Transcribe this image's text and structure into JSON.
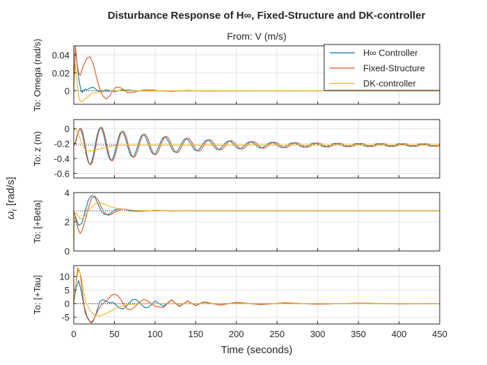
{
  "figure": {
    "title": "Disturbance Response of H∞, Fixed-Structure and DK-controller",
    "input_label": "From: V (m/s)",
    "xlabel": "Time (seconds)",
    "ylabel": "ω",
    "ylabel_sub": "r",
    "ylabel_unit": " [rad/s]",
    "legend": {
      "placement": "top-right",
      "entries": [
        {
          "label": "H∞ Controller",
          "color": "#0072BD"
        },
        {
          "label": "Fixed-Structure",
          "color": "#D95319"
        },
        {
          "label": "DK-controller",
          "color": "#EDB120"
        }
      ]
    }
  },
  "chart_data": [
    {
      "type": "line",
      "title": "",
      "ylabel": "To: Omega (rad/s)",
      "xlim": [
        0,
        450
      ],
      "x_ticks": [
        0,
        50,
        100,
        150,
        200,
        250,
        300,
        350,
        400,
        450
      ],
      "x_tick_labels": [
        "0",
        "50",
        "100",
        "150",
        "200",
        "250",
        "300",
        "350",
        "400",
        "450"
      ],
      "ylim": [
        -0.015,
        0.05
      ],
      "y_ticks": [
        0,
        0.02,
        0.04
      ],
      "y_tick_labels": [
        "0",
        "0.02",
        "0.04"
      ],
      "grid": true,
      "steady_state": 0,
      "series": [
        {
          "name": "H∞ Controller",
          "color": "#0072BD",
          "x": [
            0,
            2,
            4,
            6,
            8,
            10,
            12,
            14,
            16,
            20,
            24,
            28,
            32,
            36,
            40,
            50,
            60,
            80,
            100,
            150,
            450
          ],
          "y": [
            0,
            0.048,
            0.03,
            0.015,
            0.004,
            -0.002,
            0.0,
            0.002,
            0.001,
            0.003,
            0.004,
            0.001,
            -0.001,
            0.0,
            0.001,
            -0.001,
            0.001,
            0.0,
            0.0,
            0.0,
            0.0
          ]
        },
        {
          "name": "Fixed-Structure",
          "color": "#D95319",
          "x": [
            0,
            2,
            4,
            6,
            8,
            12,
            16,
            20,
            24,
            28,
            32,
            36,
            40,
            44,
            48,
            52,
            56,
            60,
            66,
            72,
            80,
            88,
            96,
            104,
            120,
            140,
            160,
            200,
            450
          ],
          "y": [
            0,
            0.05,
            0.03,
            0.02,
            0.017,
            0.028,
            0.036,
            0.038,
            0.03,
            0.015,
            0.002,
            -0.006,
            -0.009,
            -0.006,
            0.0,
            0.004,
            0.004,
            0.002,
            -0.002,
            -0.002,
            0.0,
            0.001,
            0.001,
            0.0,
            -0.0005,
            0.0004,
            -0.0003,
            0.0,
            0.0
          ]
        },
        {
          "name": "DK-controller",
          "color": "#EDB120",
          "x": [
            0,
            2,
            4,
            6,
            8,
            10,
            14,
            18,
            22,
            28,
            34,
            40,
            50,
            60,
            80,
            100,
            450
          ],
          "y": [
            0,
            0.03,
            0.01,
            -0.006,
            -0.012,
            -0.012,
            -0.009,
            -0.006,
            -0.003,
            -0.002,
            -0.001,
            -0.001,
            0.0,
            0.0,
            0.0,
            0.0,
            0.0
          ]
        }
      ]
    },
    {
      "type": "line",
      "title": "",
      "ylabel": "To: z (m)",
      "xlim": [
        0,
        450
      ],
      "x_ticks": [
        0,
        50,
        100,
        150,
        200,
        250,
        300,
        350,
        400,
        450
      ],
      "x_tick_labels": [
        "0",
        "50",
        "100",
        "150",
        "200",
        "250",
        "300",
        "350",
        "400",
        "450"
      ],
      "ylim": [
        -0.66,
        0.12
      ],
      "y_ticks": [
        0,
        -0.2,
        -0.4,
        -0.6
      ],
      "y_tick_labels": [
        "0",
        "-0.2",
        "-0.4",
        "-0.6"
      ],
      "grid": true,
      "steady_state": -0.22,
      "osc": {
        "period": 26.5,
        "phase": 6
      },
      "series": [
        {
          "name": "H∞ Controller",
          "color": "#0072BD",
          "x": [
            0,
            4,
            8,
            12,
            16,
            20,
            24,
            28,
            32,
            36,
            40,
            44,
            48,
            52,
            56,
            60,
            64,
            68,
            72,
            76,
            80,
            84,
            88,
            92,
            96,
            100,
            110,
            120,
            140,
            160,
            180,
            200,
            220,
            240,
            260,
            280,
            300,
            320,
            340,
            360,
            380,
            400,
            420,
            450
          ],
          "y": [
            0,
            -0.04,
            -0.08,
            -0.14,
            -0.3,
            -0.46,
            -0.5,
            -0.4,
            -0.18,
            0.02,
            0.12,
            0.02,
            -0.3,
            -0.52,
            -0.4,
            -0.1,
            0.05,
            -0.1,
            -0.37,
            -0.47,
            -0.32,
            -0.03,
            0.02,
            -0.15,
            -0.38,
            -0.43,
            -0.05,
            -0.38,
            -0.38,
            -0.4,
            -0.36,
            -0.34,
            -0.33,
            -0.31,
            -0.3,
            -0.28,
            -0.27,
            -0.26,
            -0.25,
            -0.25,
            -0.24,
            -0.23,
            -0.23,
            -0.225
          ],
          "amp_mode": true
        },
        {
          "name": "Fixed-Structure",
          "color": "#D95319",
          "x": [
            0,
            450
          ],
          "y": [
            0,
            -0.22
          ],
          "amp_mode": true
        },
        {
          "name": "DK-controller",
          "color": "#EDB120",
          "x": [
            0,
            3,
            6,
            10,
            14,
            20,
            26,
            32,
            40,
            50,
            60,
            80,
            100,
            450
          ],
          "y": [
            0,
            -0.02,
            -0.08,
            -0.2,
            -0.28,
            -0.3,
            -0.29,
            -0.27,
            -0.25,
            -0.23,
            -0.22,
            -0.22,
            -0.22,
            -0.22
          ]
        }
      ]
    },
    {
      "type": "line",
      "title": "",
      "ylabel": "To: [+Beta]",
      "xlim": [
        0,
        450
      ],
      "x_ticks": [
        0,
        50,
        100,
        150,
        200,
        250,
        300,
        350,
        400,
        450
      ],
      "x_tick_labels": [
        "0",
        "50",
        "100",
        "150",
        "200",
        "250",
        "300",
        "350",
        "400",
        "450"
      ],
      "ylim": [
        0,
        4
      ],
      "y_ticks": [
        0,
        2,
        4
      ],
      "y_tick_labels": [
        "0",
        "2",
        "4"
      ],
      "grid": true,
      "steady_state": 2.75,
      "series": [
        {
          "name": "H∞ Controller",
          "color": "#0072BD",
          "x": [
            0,
            3,
            6,
            10,
            14,
            18,
            22,
            26,
            30,
            34,
            38,
            42,
            46,
            50,
            56,
            62,
            70,
            80,
            90,
            100,
            120,
            150,
            200,
            450
          ],
          "y": [
            2.75,
            2.2,
            1.75,
            1.9,
            2.7,
            3.5,
            3.8,
            3.7,
            3.2,
            2.7,
            2.5,
            2.5,
            2.6,
            2.8,
            2.9,
            2.85,
            2.75,
            2.72,
            2.76,
            2.76,
            2.75,
            2.75,
            2.75,
            2.75
          ]
        },
        {
          "name": "Fixed-Structure",
          "color": "#D95319",
          "x": [
            0,
            3,
            6,
            8,
            10,
            14,
            18,
            22,
            26,
            30,
            34,
            38,
            42,
            46,
            52,
            58,
            64,
            72,
            80,
            90,
            100,
            110,
            120,
            140,
            160,
            200,
            450
          ],
          "y": [
            2.75,
            2.0,
            1.4,
            1.2,
            1.35,
            2.1,
            2.95,
            3.6,
            3.75,
            3.5,
            3.0,
            2.6,
            2.45,
            2.5,
            2.7,
            2.85,
            2.85,
            2.78,
            2.72,
            2.74,
            2.78,
            2.76,
            2.73,
            2.76,
            2.75,
            2.75,
            2.75
          ]
        },
        {
          "name": "DK-controller",
          "color": "#EDB120",
          "x": [
            0,
            0.6,
            2,
            4,
            6,
            8,
            12,
            16,
            20,
            26,
            32,
            38,
            44,
            50,
            60,
            70,
            80,
            100,
            120,
            450
          ],
          "y": [
            0,
            2.1,
            2.6,
            2.55,
            2.35,
            2.2,
            2.3,
            2.6,
            2.9,
            3.2,
            3.3,
            3.2,
            3.05,
            2.95,
            2.85,
            2.8,
            2.77,
            2.75,
            2.75,
            2.75
          ]
        }
      ]
    },
    {
      "type": "line",
      "title": "",
      "ylabel": "To: [+Tau]",
      "xlim": [
        0,
        450
      ],
      "x_ticks": [
        0,
        50,
        100,
        150,
        200,
        250,
        300,
        350,
        400,
        450
      ],
      "x_tick_labels": [
        "0",
        "50",
        "100",
        "150",
        "200",
        "250",
        "300",
        "350",
        "400",
        "450"
      ],
      "ylim": [
        -7.5,
        14
      ],
      "y_ticks": [
        10,
        5,
        0,
        -5
      ],
      "y_tick_labels": [
        "10",
        "5",
        "0",
        "-5"
      ],
      "grid": true,
      "steady_state": 0,
      "series": [
        {
          "name": "H∞ Controller",
          "color": "#0072BD",
          "x": [
            0,
            3,
            6,
            9,
            12,
            16,
            20,
            24,
            28,
            32,
            36,
            40,
            44,
            48,
            52,
            56,
            60,
            64,
            68,
            72,
            76,
            80,
            84,
            88,
            92,
            96,
            100,
            110,
            120,
            130,
            140,
            150,
            160,
            180,
            200,
            230,
            260,
            300,
            350,
            400,
            450
          ],
          "y": [
            0,
            6,
            8.5,
            5,
            0,
            -4.5,
            -6.8,
            -6.5,
            -3.2,
            0.8,
            1.5,
            0.8,
            0.3,
            0.5,
            -0.5,
            -1.6,
            -2,
            -1.2,
            0.3,
            1.3,
            1.6,
            0.6,
            -0.6,
            -1.6,
            -1.3,
            -0.2,
            1,
            -1,
            1.3,
            -0.9,
            0.9,
            -0.7,
            0.6,
            -0.5,
            0.4,
            -0.3,
            0.25,
            -0.2,
            0.15,
            -0.1,
            0
          ]
        },
        {
          "name": "Fixed-Structure",
          "color": "#D95319",
          "x": [
            0,
            2,
            5,
            8,
            11,
            14,
            18,
            22,
            26,
            30,
            34,
            38,
            42,
            46,
            50,
            54,
            58,
            62,
            66,
            70,
            74,
            78,
            82,
            86,
            90,
            94,
            100,
            110,
            120,
            130,
            140,
            150,
            160,
            180,
            200,
            230,
            260,
            300,
            350,
            400,
            450
          ],
          "y": [
            0,
            6,
            13,
            11,
            3,
            -3.5,
            -6,
            -7.2,
            -5,
            -2.3,
            -0.5,
            0.5,
            1.5,
            3,
            3.5,
            3,
            1.5,
            -0.5,
            -2,
            -2.2,
            -1.5,
            -0.3,
            0.8,
            1.5,
            1.2,
            0.3,
            -1,
            -1.5,
            1.4,
            -1.1,
            1,
            -0.8,
            0.7,
            -0.55,
            0.45,
            -0.35,
            0.3,
            -0.2,
            0.15,
            -0.1,
            0
          ]
        },
        {
          "name": "DK-controller",
          "color": "#EDB120",
          "x": [
            0,
            3,
            6,
            9,
            12,
            15,
            20,
            26,
            32,
            38,
            44,
            50,
            56,
            62,
            70,
            80,
            90,
            100,
            120,
            150,
            450
          ],
          "y": [
            0,
            8,
            13,
            10,
            5,
            0.5,
            -2.5,
            -4.3,
            -4.6,
            -4,
            -3,
            -2,
            -1.2,
            -0.6,
            -0.3,
            -0.1,
            0,
            0,
            0,
            0,
            0
          ]
        }
      ]
    }
  ]
}
